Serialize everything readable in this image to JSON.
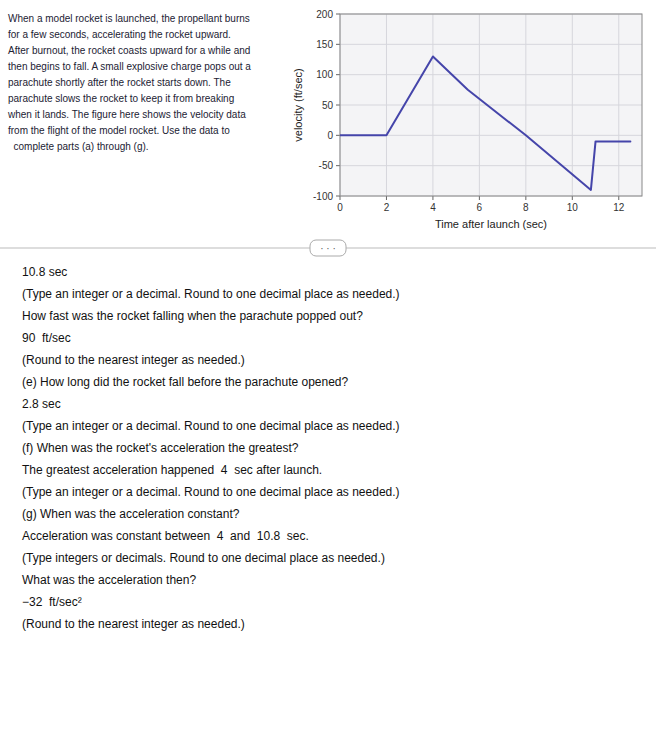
{
  "chart_data": {
    "type": "line",
    "x_label": "Time after launch (sec)",
    "y_label": "velocity (ft/sec)",
    "x": [
      0,
      2,
      4,
      5.5,
      8,
      10.8,
      11.0,
      12.5
    ],
    "values": [
      0,
      0,
      130,
      75,
      0,
      -90,
      -10,
      -10
    ],
    "color": "#4545aa",
    "xlim": [
      0,
      13
    ],
    "ylim": [
      -100,
      200
    ],
    "xticks": [
      0,
      2,
      4,
      6,
      8,
      10,
      12
    ],
    "yticks": [
      -100,
      -50,
      0,
      50,
      100,
      150,
      200
    ],
    "grid": true,
    "annotations": {
      "description": [
        "When a model rocket is launched, the propellant burns",
        "for a few seconds, accelerating the rocket upward.",
        "After burnout, the rocket coasts upward for a while and",
        "then begins to fall. A small explosive charge pops out a",
        "parachute shortly after the rocket starts down. The",
        "parachute slows the rocket to keep it from breaking",
        "when it lands. The figure here shows the velocity data",
        "from the flight of the model rocket. Use the data to",
        "  complete parts (a) through (g)."
      ],
      "divider": "· · ·",
      "answers": [
        "10.8 sec",
        "(Type an integer or a decimal. Round to one decimal place as needed.)",
        "How fast was the rocket falling when the parachute popped out?",
        "90  ft/sec",
        "(Round to the nearest integer as needed.)",
        "(e) How long did the rocket fall before the parachute opened?",
        "2.8 sec",
        "(Type an integer or a decimal. Round to one decimal place as needed.)",
        "(f) When was the rocket's acceleration the greatest?",
        "The greatest acceleration happened  4  sec after launch.",
        "(Type an integer or a decimal. Round to one decimal place as needed.)",
        "(g) When was the acceleration constant?",
        "Acceleration was constant between  4  and  10.8  sec.",
        "(Type integers or decimals. Round to one decimal place as needed.)",
        "What was the acceleration then?",
        "−32  ft/sec²",
        "(Round to the nearest integer as needed.)"
      ]
    }
  }
}
